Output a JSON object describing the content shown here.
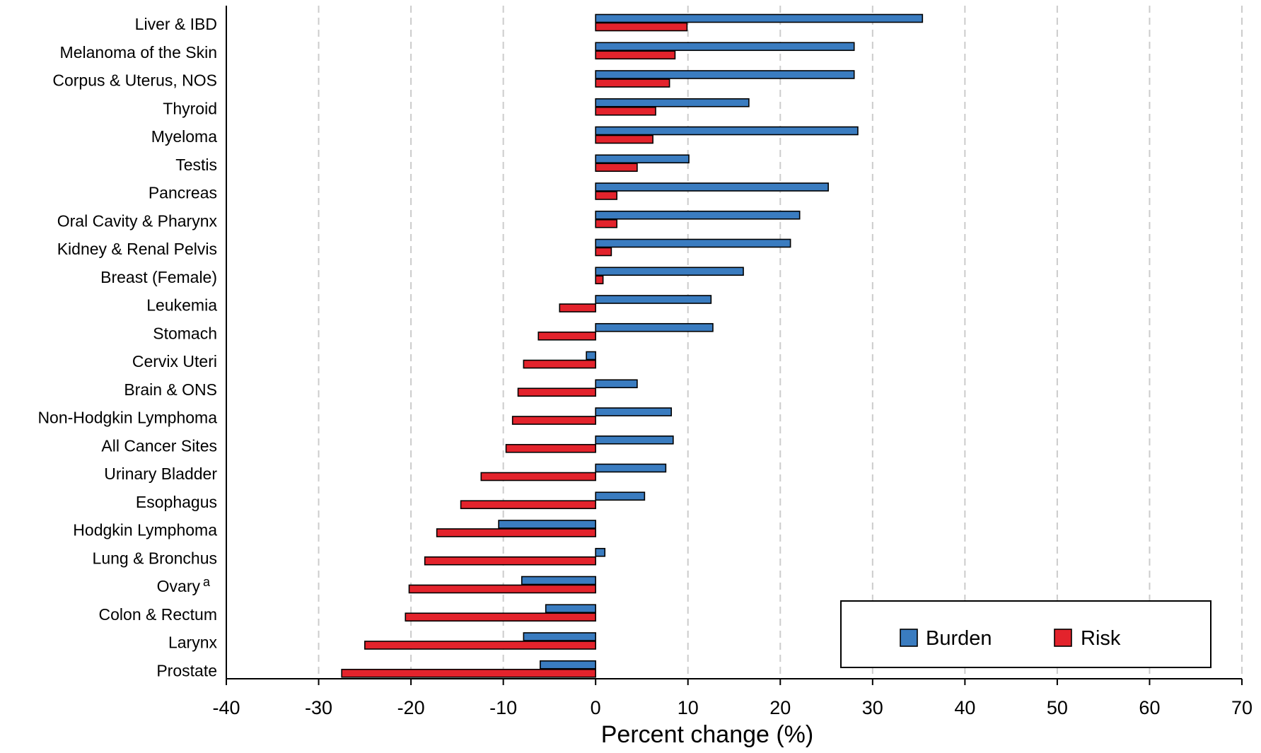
{
  "chart_data": {
    "type": "bar",
    "orientation": "horizontal",
    "categories": [
      "Liver & IBD",
      "Melanoma of the Skin",
      "Corpus & Uterus, NOS",
      "Thyroid",
      "Myeloma",
      "Testis",
      "Pancreas",
      "Oral Cavity & Pharynx",
      "Kidney & Renal Pelvis",
      "Breast (Female)",
      "Leukemia",
      "Stomach",
      "Cervix Uteri",
      "Brain & ONS",
      "Non-Hodgkin Lymphoma",
      "All Cancer Sites",
      "Urinary Bladder",
      "Esophagus",
      "Hodgkin Lymphoma",
      "Lung & Bronchus",
      "Ovary",
      "Colon & Rectum",
      "Larynx",
      "Prostate"
    ],
    "category_footnotes": {
      "Ovary": "a"
    },
    "series": [
      {
        "name": "Burden",
        "color": "#3a7cc0",
        "values": [
          35.4,
          28.0,
          28.0,
          16.6,
          28.4,
          10.1,
          25.2,
          22.1,
          21.1,
          16.0,
          12.5,
          12.7,
          -1.0,
          4.5,
          8.2,
          8.4,
          7.6,
          5.3,
          -10.5,
          1.0,
          -8.0,
          -5.4,
          -7.8,
          -6.0
        ]
      },
      {
        "name": "Risk",
        "color": "#e3232c",
        "values": [
          9.9,
          8.6,
          8.0,
          6.5,
          6.2,
          4.5,
          2.3,
          2.3,
          1.7,
          0.8,
          -3.9,
          -6.2,
          -7.8,
          -8.4,
          -9.0,
          -9.7,
          -12.4,
          -14.6,
          -17.2,
          -18.5,
          -20.2,
          -20.6,
          -25.0,
          -27.5
        ]
      }
    ],
    "xlabel": "Percent change (%)",
    "ylabel": "",
    "xlim": [
      -40,
      70
    ],
    "xticks": [
      -40,
      -30,
      -20,
      -10,
      0,
      10,
      20,
      30,
      40,
      50,
      60,
      70
    ],
    "grid": true,
    "legend_position": "bottom-right"
  }
}
